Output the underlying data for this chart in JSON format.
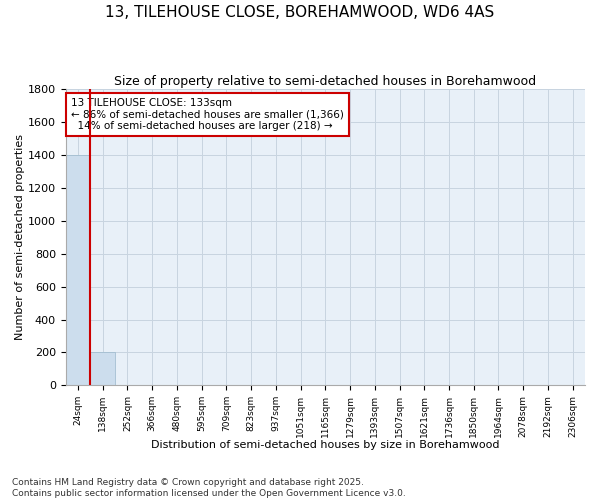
{
  "title": "13, TILEHOUSE CLOSE, BOREHAMWOOD, WD6 4AS",
  "subtitle": "Size of property relative to semi-detached houses in Borehamwood",
  "xlabel": "Distribution of semi-detached houses by size in Borehamwood",
  "ylabel": "Number of semi-detached properties",
  "categories": [
    "24sqm",
    "138sqm",
    "252sqm",
    "366sqm",
    "480sqm",
    "595sqm",
    "709sqm",
    "823sqm",
    "937sqm",
    "1051sqm",
    "1165sqm",
    "1279sqm",
    "1393sqm",
    "1507sqm",
    "1621sqm",
    "1736sqm",
    "1850sqm",
    "1964sqm",
    "2078sqm",
    "2192sqm",
    "2306sqm"
  ],
  "values": [
    1400,
    200,
    0,
    0,
    0,
    0,
    0,
    0,
    0,
    0,
    0,
    0,
    0,
    0,
    0,
    0,
    0,
    0,
    0,
    0,
    0
  ],
  "bar_color": "#ccdded",
  "bar_edge_color": "#9ab8cc",
  "property_label": "13 TILEHOUSE CLOSE: 133sqm",
  "pct_smaller": 86,
  "n_smaller": 1366,
  "pct_larger": 14,
  "n_larger": 218,
  "vline_color": "#cc0000",
  "vline_x": 1,
  "ylim": [
    0,
    1800
  ],
  "yticks": [
    0,
    200,
    400,
    600,
    800,
    1000,
    1200,
    1400,
    1600,
    1800
  ],
  "annotation_box_color": "#cc0000",
  "grid_color": "#c8d4e0",
  "bg_color": "#e8f0f8",
  "footer": "Contains HM Land Registry data © Crown copyright and database right 2025.\nContains public sector information licensed under the Open Government Licence v3.0."
}
